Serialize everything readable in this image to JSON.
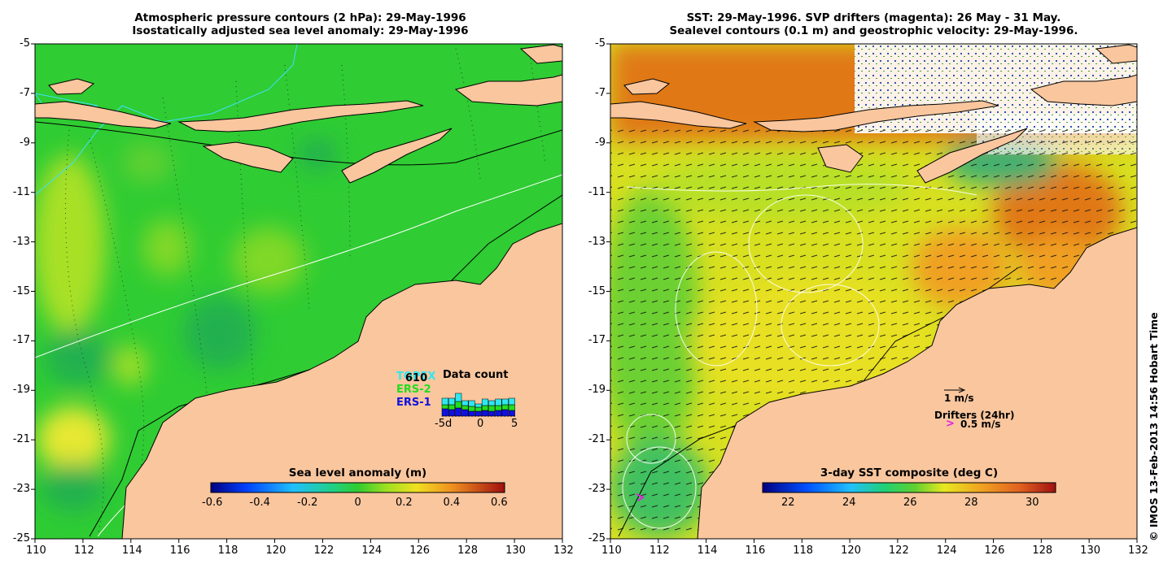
{
  "left_panel": {
    "title_line1": "Atmospheric pressure contours (2 hPa): 29-May-1996",
    "title_line2": "Isostatically adjusted sea level anomaly: 29-May-1996",
    "x_ticks": [
      "110",
      "112",
      "114",
      "116",
      "118",
      "120",
      "122",
      "124",
      "126",
      "128",
      "130",
      "132"
    ],
    "y_ticks": [
      "-5",
      "-7",
      "-9",
      "-11",
      "-13",
      "-15",
      "-17",
      "-19",
      "-21",
      "-23",
      "-25"
    ],
    "colorbar": {
      "label": "Sea level anomaly (m)",
      "ticks": [
        "-0.6",
        "-0.4",
        "-0.2",
        "0",
        "0.2",
        "0.4",
        "0.6"
      ]
    },
    "data_count": {
      "title": "Data count",
      "count": "610",
      "legend": [
        {
          "name": "TOPEX",
          "color": "#2ee8f0"
        },
        {
          "name": "ERS-2",
          "color": "#22dd22"
        },
        {
          "name": "ERS-1",
          "color": "#1010e0"
        }
      ],
      "x_ticks": [
        "-5d",
        "0",
        "5"
      ]
    },
    "colors": {
      "land": "#f9c69e",
      "ocean": "#2fcc33"
    }
  },
  "right_panel": {
    "title_line1": "SST: 29-May-1996. SVP drifters (magenta): 26 May - 31 May.",
    "title_line2": "Sealevel contours (0.1 m) and geostrophic velocity: 29-May-1996.",
    "x_ticks": [
      "110",
      "112",
      "114",
      "116",
      "118",
      "120",
      "122",
      "124",
      "126",
      "128",
      "130",
      "132"
    ],
    "y_ticks": [
      "-5",
      "-7",
      "-9",
      "-11",
      "-13",
      "-15",
      "-17",
      "-19",
      "-21",
      "-23",
      "-25"
    ],
    "colorbar": {
      "label": "3-day SST composite (deg C)",
      "ticks": [
        "22",
        "24",
        "26",
        "28",
        "30"
      ]
    },
    "velocity_scale_label": "1 m/s",
    "drifter_legend_title": "Drifters (24hr)",
    "drifter_legend_symbol": ">",
    "drifter_legend_value": "0.5 m/s",
    "colors": {
      "land": "#f9c69e",
      "warm": "#f0a020",
      "hot": "#c8641a",
      "cool": "#5dcc40"
    }
  },
  "credit": "© IMOS 13-Feb-2013 14:56 Hobart Time"
}
